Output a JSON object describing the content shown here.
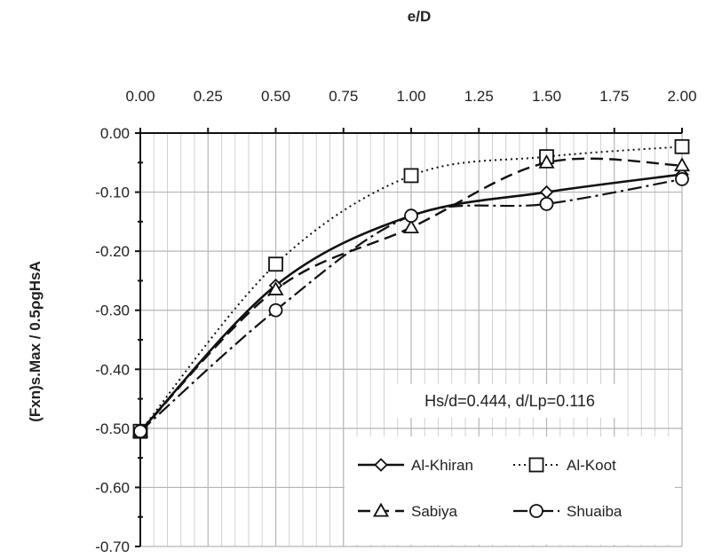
{
  "chart_data": {
    "type": "line",
    "xlabel": "e/D",
    "ylabel": "(Fxn)s.Max / 0.5ρgHsA",
    "xlim": [
      0,
      2
    ],
    "ylim": [
      -0.7,
      0
    ],
    "xticks": [
      "0.00",
      "0.25",
      "0.50",
      "0.75",
      "1.00",
      "1.25",
      "1.50",
      "1.75",
      "2.00"
    ],
    "yticks": [
      "0.00",
      "-0.10",
      "-0.20",
      "-0.30",
      "-0.40",
      "-0.50",
      "-0.60",
      "-0.70"
    ],
    "x_axis_position": "top",
    "grid": true,
    "annotation": "Hs/d=0.444, d/Lp=0.116",
    "legend_position": "bottom-right",
    "series": [
      {
        "name": "Al-Khiran",
        "marker": "diamond",
        "dash": "solid",
        "x": [
          0,
          0.5,
          1,
          1.5,
          2
        ],
        "y": [
          -0.505,
          -0.258,
          -0.14,
          -0.1,
          -0.07
        ]
      },
      {
        "name": "Al-Koot",
        "marker": "square",
        "dash": "dotted",
        "x": [
          0,
          0.5,
          1,
          1.5,
          2
        ],
        "y": [
          -0.505,
          -0.222,
          -0.072,
          -0.04,
          -0.023
        ]
      },
      {
        "name": "Sabiya",
        "marker": "triangle",
        "dash": "dashed",
        "x": [
          0,
          0.5,
          1,
          1.5,
          2
        ],
        "y": [
          -0.505,
          -0.265,
          -0.16,
          -0.05,
          -0.055
        ]
      },
      {
        "name": "Shuaiba",
        "marker": "circle",
        "dash": "dashdot",
        "x": [
          0,
          0.5,
          1,
          1.5,
          2
        ],
        "y": [
          -0.505,
          -0.3,
          -0.14,
          -0.12,
          -0.078
        ]
      }
    ]
  }
}
